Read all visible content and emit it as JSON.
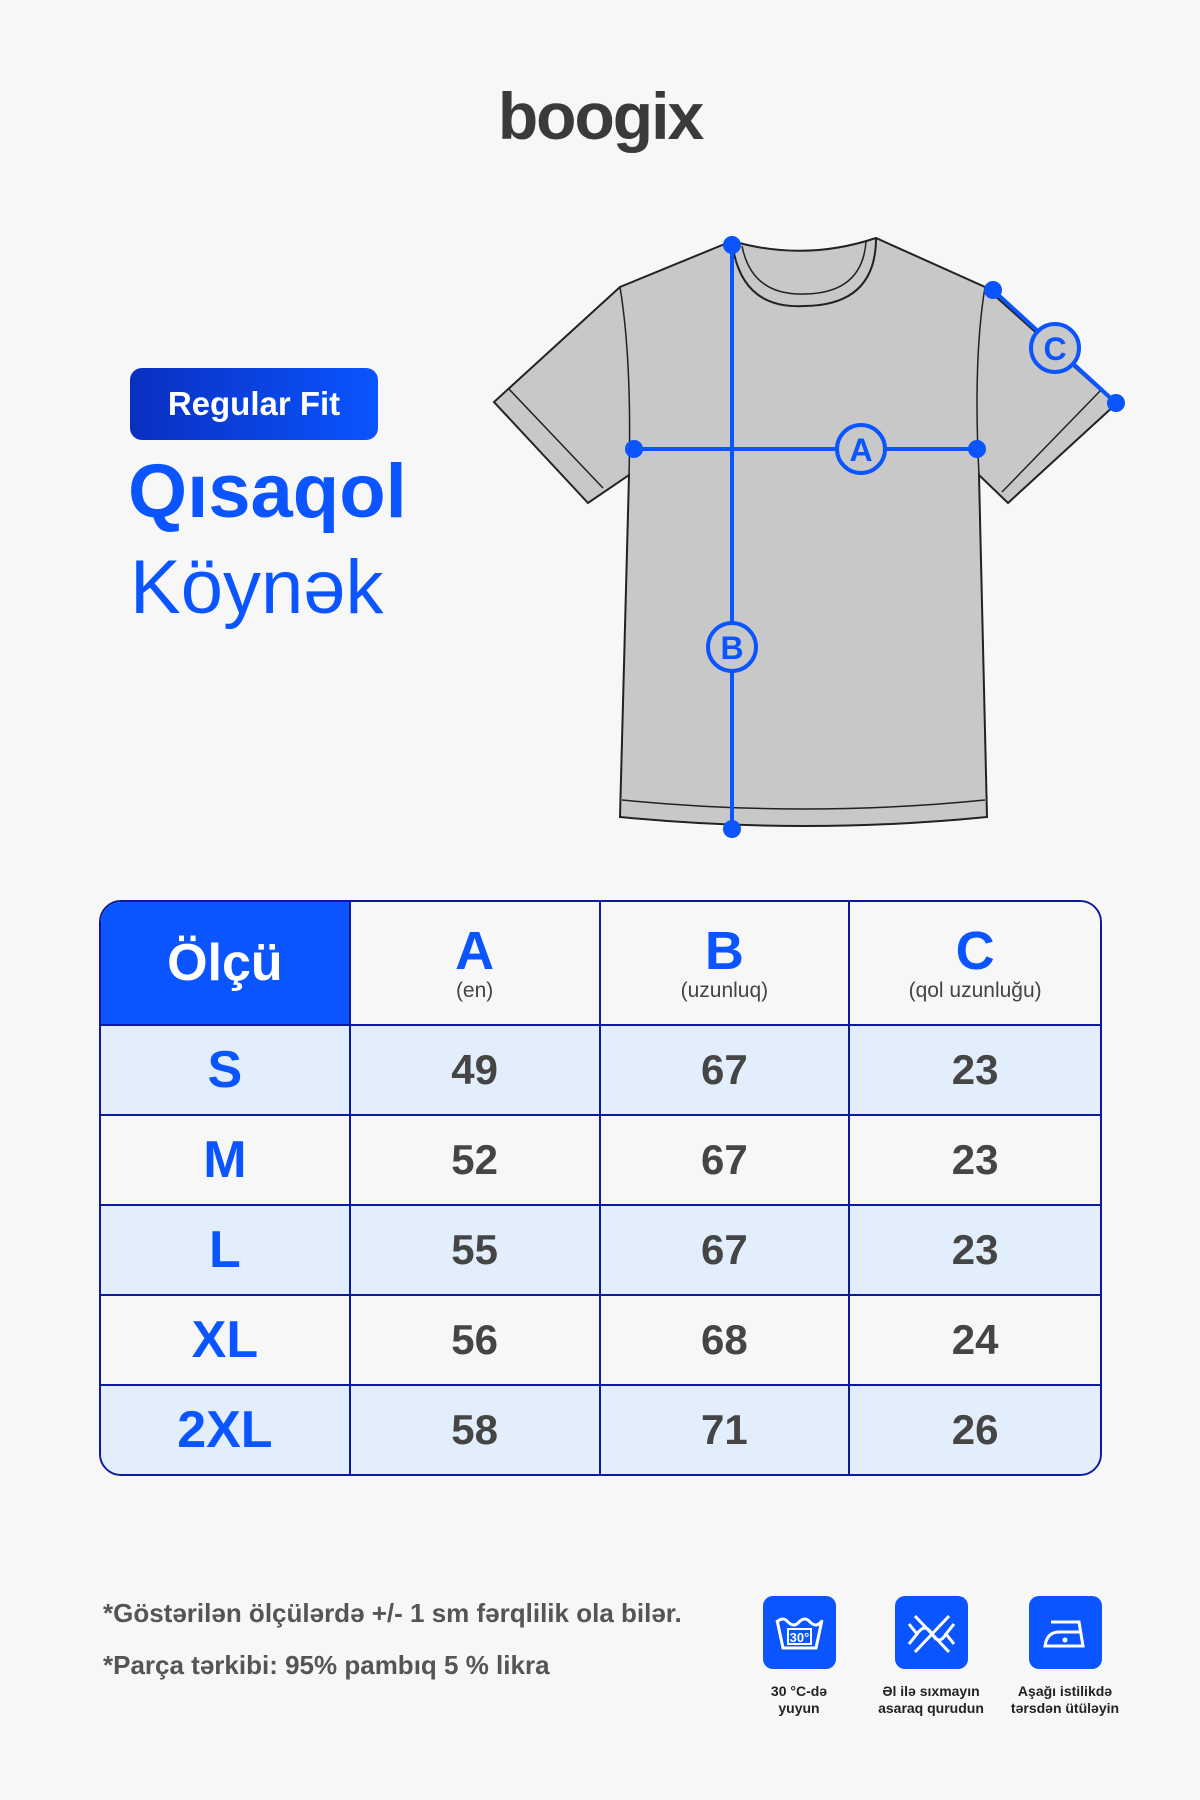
{
  "brand": "boogix",
  "badge": "Regular Fit",
  "title_line1": "Qısaqol",
  "title_line2": "Köynək",
  "diagram": {
    "labels": [
      "A",
      "B",
      "C"
    ]
  },
  "table": {
    "header": {
      "size": "Ölçü",
      "columns": [
        {
          "letter": "A",
          "desc": "(en)"
        },
        {
          "letter": "B",
          "desc": "(uzunluq)"
        },
        {
          "letter": "C",
          "desc": "(qol uzunluğu)"
        }
      ]
    },
    "rows": [
      {
        "size": "S",
        "a": "49",
        "b": "67",
        "c": "23"
      },
      {
        "size": "M",
        "a": "52",
        "b": "67",
        "c": "23"
      },
      {
        "size": "L",
        "a": "55",
        "b": "67",
        "c": "23"
      },
      {
        "size": "XL",
        "a": "56",
        "b": "68",
        "c": "24"
      },
      {
        "size": "2XL",
        "a": "58",
        "b": "71",
        "c": "26"
      }
    ]
  },
  "notes": [
    "*Göstərilən ölçülərdə +/- 1 sm fərqlilik ola bilər.",
    "*Parça tərkibi: 95% pambıq 5 % likra"
  ],
  "care": [
    {
      "icon": "wash-30-icon",
      "line1": "30 °C-də",
      "line2": "yuyun"
    },
    {
      "icon": "do-not-wring-icon",
      "line1": "Əl ilə sıxmayın",
      "line2": "asaraq qurudun"
    },
    {
      "icon": "iron-low-icon",
      "line1": "Aşağı istilikdə",
      "line2": "tərsdən ütüləyin"
    }
  ],
  "colors": {
    "accent": "#0a55ff",
    "border": "#0d1aa0",
    "row_alt": "#e3eefc",
    "shirt": "#c8c8c8"
  }
}
